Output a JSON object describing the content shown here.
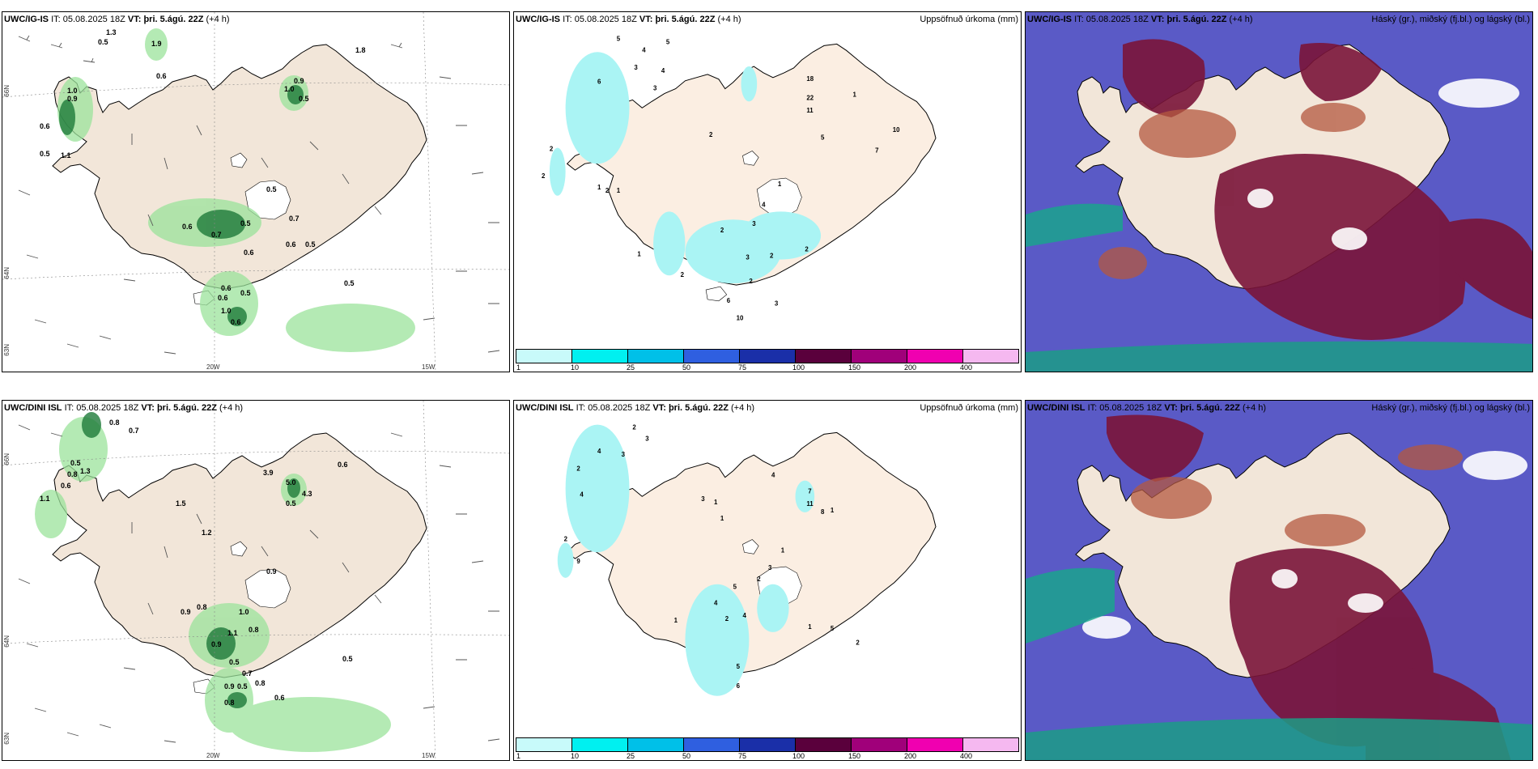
{
  "panels": [
    {
      "id": "p1",
      "model": "UWC/IG-IS",
      "it_label": "IT:",
      "it": "05.08.2025 18Z",
      "vt_label": "VT:",
      "vt": "þri. 5.ágú. 22Z",
      "lead": "(+4 h)",
      "right_title": ""
    },
    {
      "id": "p2",
      "model": "UWC/IG-IS",
      "it_label": "IT:",
      "it": "05.08.2025 18Z",
      "vt_label": "VT:",
      "vt": "þri. 5.ágú. 22Z",
      "lead": "(+4 h)",
      "right_title": "Uppsöfnuð úrkoma (mm)"
    },
    {
      "id": "p3",
      "model": "UWC/IG-IS",
      "it_label": "IT:",
      "it": "05.08.2025 18Z",
      "vt_label": "VT:",
      "vt": "þri. 5.ágú. 22Z",
      "lead": "(+4 h)",
      "right_title": "Háský (gr.), miðský (fj.bl.) og lágský (bl.)"
    },
    {
      "id": "p4",
      "model": "UWC/DINI ISL",
      "it_label": "IT:",
      "it": "05.08.2025 18Z",
      "vt_label": "VT:",
      "vt": "þri. 5.ágú. 22Z",
      "lead": "(+4 h)",
      "right_title": ""
    },
    {
      "id": "p5",
      "model": "UWC/DINI ISL",
      "it_label": "IT:",
      "it": "05.08.2025 18Z",
      "vt_label": "VT:",
      "vt": "þri. 5.ágú. 22Z",
      "lead": "(+4 h)",
      "right_title": "Uppsöfnuð úrkoma (mm)"
    },
    {
      "id": "p6",
      "model": "UWC/DINI ISL",
      "it_label": "IT:",
      "it": "05.08.2025 18Z",
      "vt_label": "VT:",
      "vt": "þri. 5.ágú. 22Z",
      "lead": "(+4 h)",
      "right_title": "Háský (gr.), miðský (fj.bl.) og lágský (bl.)"
    }
  ],
  "axis_labels": {
    "lon_20w": "20W",
    "lon_15w": "15W",
    "lat_66n": "66N",
    "lat_64n": "64N",
    "lat_63n": "63N"
  },
  "colorbar": {
    "ticks": [
      "1",
      "10",
      "25",
      "50",
      "75",
      "100",
      "150",
      "200",
      "400"
    ],
    "colors": [
      "#c8fafa",
      "#00f0f0",
      "#00c0e8",
      "#2f5fe0",
      "#1a2fa8",
      "#5a003c",
      "#a0007a",
      "#f000b0",
      "#f5b8f0"
    ]
  },
  "colors": {
    "land": "#f2e6d9",
    "precip_land": "#fbeee2",
    "low_cloud": "#5656c8",
    "high_cloud": "#7a1438",
    "mid_cloud": "#b4583f",
    "coast": "#000000"
  },
  "map_labels": {
    "p1": [
      "0.5",
      "1.3",
      "1.9",
      "0.6",
      "1.0",
      "0.9",
      "0.6",
      "0.5",
      "1.1",
      "0.9",
      "1.0",
      "0.5",
      "0.5",
      "0.6",
      "0.7",
      "0.5",
      "0.7",
      "0.6",
      "0.5",
      "0.6",
      "0.6",
      "0.5",
      "0.6",
      "1.0",
      "0.6",
      "1.8",
      "0.5"
    ],
    "p2": [
      "5",
      "4",
      "5",
      "3",
      "4",
      "6",
      "3",
      "2",
      "2",
      "2",
      "1",
      "1",
      "18",
      "22",
      "11",
      "1",
      "10",
      "5",
      "7",
      "2",
      "4",
      "1",
      "3",
      "2",
      "3",
      "2",
      "2",
      "2",
      "1",
      "6",
      "10",
      "3",
      "2"
    ],
    "p4": [
      "0.8",
      "0.7",
      "0.5",
      "0.8",
      "0.6",
      "1.1",
      "1.3",
      "1.5",
      "3.9",
      "0.6",
      "5.0",
      "4.3",
      "0.5",
      "1.2",
      "0.9",
      "0.9",
      "0.8",
      "1.0",
      "1.1",
      "0.9",
      "0.8",
      "0.5",
      "0.7",
      "0.9",
      "0.5",
      "0.8",
      "0.6",
      "0.8",
      "0.5"
    ],
    "p5": [
      "2",
      "3",
      "4",
      "3",
      "2",
      "4",
      "2",
      "3",
      "1",
      "1",
      "4",
      "7",
      "11",
      "8",
      "1",
      "9",
      "1",
      "3",
      "2",
      "5",
      "4",
      "2",
      "4",
      "1",
      "1",
      "5",
      "2",
      "5",
      "6"
    ]
  }
}
